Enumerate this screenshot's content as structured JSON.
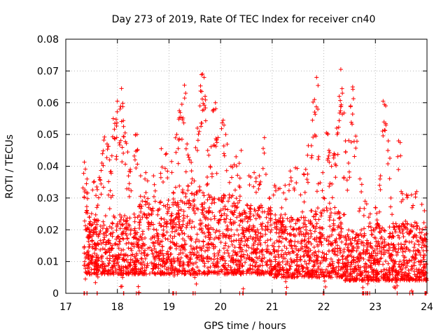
{
  "chart_data": {
    "type": "scatter",
    "title": "Day 273 of 2019, Rate Of TEC Index for receiver cn40",
    "xlabel": "GPS time / hours",
    "ylabel": "ROTI / TECUs",
    "xlim": [
      17,
      24
    ],
    "ylim": [
      0,
      0.08
    ],
    "grid": true,
    "marker": "+",
    "color": "#ff0000",
    "x_ticks": [
      "17",
      "18",
      "19",
      "20",
      "21",
      "22",
      "23",
      "24"
    ],
    "y_ticks": [
      "0",
      "0.01",
      "0.02",
      "0.03",
      "0.04",
      "0.05",
      "0.06",
      "0.07",
      "0.08"
    ],
    "x_tick_values": [
      17,
      18,
      19,
      20,
      21,
      22,
      23,
      24
    ],
    "y_tick_values": [
      0,
      0.01,
      0.02,
      0.03,
      0.04,
      0.05,
      0.06,
      0.07,
      0.08
    ],
    "series": [
      {
        "name": "ROTI",
        "points": [
          [
            17.36,
            0.0413
          ],
          [
            17.38,
            0.0391
          ],
          [
            17.4,
            0.0345
          ],
          [
            17.42,
            0.0298
          ],
          [
            17.45,
            0.0202
          ],
          [
            17.48,
            0.0192
          ],
          [
            17.5,
            0.0251
          ],
          [
            17.55,
            0.0352
          ],
          [
            17.6,
            0.0335
          ],
          [
            17.65,
            0.0365
          ],
          [
            17.7,
            0.041
          ],
          [
            17.75,
            0.0492
          ],
          [
            17.8,
            0.047
          ],
          [
            17.85,
            0.042
          ],
          [
            17.88,
            0.0378
          ],
          [
            17.92,
            0.055
          ],
          [
            17.95,
            0.0535
          ],
          [
            18.0,
            0.0605
          ],
          [
            18.05,
            0.058
          ],
          [
            18.08,
            0.0645
          ],
          [
            18.12,
            0.0525
          ],
          [
            18.15,
            0.0505
          ],
          [
            18.2,
            0.0445
          ],
          [
            18.25,
            0.039
          ],
          [
            18.35,
            0.0498
          ],
          [
            18.38,
            0.05
          ],
          [
            18.45,
            0.037
          ],
          [
            18.55,
            0.038
          ],
          [
            18.7,
            0.037
          ],
          [
            18.85,
            0.0455
          ],
          [
            18.95,
            0.044
          ],
          [
            19.05,
            0.0415
          ],
          [
            19.15,
            0.05
          ],
          [
            19.2,
            0.0575
          ],
          [
            19.25,
            0.0595
          ],
          [
            19.3,
            0.0655
          ],
          [
            19.35,
            0.047
          ],
          [
            19.4,
            0.042
          ],
          [
            19.45,
            0.036
          ],
          [
            19.55,
            0.052
          ],
          [
            19.6,
            0.059
          ],
          [
            19.65,
            0.069
          ],
          [
            19.68,
            0.068
          ],
          [
            19.7,
            0.062
          ],
          [
            19.75,
            0.045
          ],
          [
            19.8,
            0.04
          ],
          [
            19.85,
            0.0575
          ],
          [
            19.9,
            0.06
          ],
          [
            19.95,
            0.049
          ],
          [
            20.05,
            0.0545
          ],
          [
            20.1,
            0.05
          ],
          [
            20.2,
            0.04
          ],
          [
            20.3,
            0.043
          ],
          [
            20.4,
            0.045
          ],
          [
            20.55,
            0.037
          ],
          [
            20.65,
            0.038
          ],
          [
            20.75,
            0.037
          ],
          [
            20.85,
            0.049
          ],
          [
            20.95,
            0.03
          ],
          [
            21.05,
            0.034
          ],
          [
            21.15,
            0.033
          ],
          [
            21.25,
            0.034
          ],
          [
            21.35,
            0.0385
          ],
          [
            21.45,
            0.0395
          ],
          [
            21.55,
            0.031
          ],
          [
            21.65,
            0.039
          ],
          [
            21.7,
            0.0465
          ],
          [
            21.78,
            0.0545
          ],
          [
            21.82,
            0.061
          ],
          [
            21.86,
            0.068
          ],
          [
            21.9,
            0.043
          ],
          [
            21.98,
            0.038
          ],
          [
            22.05,
            0.0505
          ],
          [
            22.1,
            0.045
          ],
          [
            22.15,
            0.04
          ],
          [
            22.2,
            0.044
          ],
          [
            22.25,
            0.052
          ],
          [
            22.3,
            0.062
          ],
          [
            22.33,
            0.0705
          ],
          [
            22.36,
            0.063
          ],
          [
            22.42,
            0.048
          ],
          [
            22.48,
            0.041
          ],
          [
            22.52,
            0.059
          ],
          [
            22.56,
            0.065
          ],
          [
            22.62,
            0.0495
          ],
          [
            22.7,
            0.036
          ],
          [
            22.8,
            0.029
          ],
          [
            22.9,
            0.025
          ],
          [
            23.0,
            0.027
          ],
          [
            23.1,
            0.037
          ],
          [
            23.15,
            0.0605
          ],
          [
            23.2,
            0.059
          ],
          [
            23.25,
            0.048
          ],
          [
            23.3,
            0.03
          ],
          [
            23.45,
            0.048
          ],
          [
            23.5,
            0.032
          ],
          [
            23.6,
            0.031
          ],
          [
            23.7,
            0.031
          ],
          [
            23.8,
            0.032
          ],
          [
            23.9,
            0.028
          ],
          [
            23.95,
            0.026
          ],
          [
            23.98,
            0.004
          ],
          [
            17.38,
            0.0045
          ],
          [
            17.6,
            0.006
          ],
          [
            18.1,
            0.005
          ],
          [
            18.4,
            0.006
          ],
          [
            19.1,
            0.0055
          ],
          [
            19.5,
            0.005
          ],
          [
            20.4,
            0.006
          ],
          [
            21.3,
            0.005
          ],
          [
            22.0,
            0.0055
          ],
          [
            22.75,
            0.004
          ],
          [
            22.85,
            0.003
          ],
          [
            23.4,
            0.0035
          ],
          [
            23.7,
            0.0045
          ]
        ],
        "dense_band": [
          [
            17.35,
            17.7,
            0.006,
            0.023
          ],
          [
            17.7,
            18.4,
            0.006,
            0.025
          ],
          [
            18.4,
            19.1,
            0.006,
            0.03
          ],
          [
            19.1,
            19.7,
            0.006,
            0.034
          ],
          [
            19.7,
            20.4,
            0.006,
            0.031
          ],
          [
            20.4,
            21.0,
            0.006,
            0.028
          ],
          [
            21.0,
            21.7,
            0.005,
            0.024
          ],
          [
            21.7,
            22.4,
            0.005,
            0.027
          ],
          [
            22.4,
            23.0,
            0.004,
            0.02
          ],
          [
            23.0,
            24.0,
            0.004,
            0.022
          ]
        ]
      }
    ]
  }
}
